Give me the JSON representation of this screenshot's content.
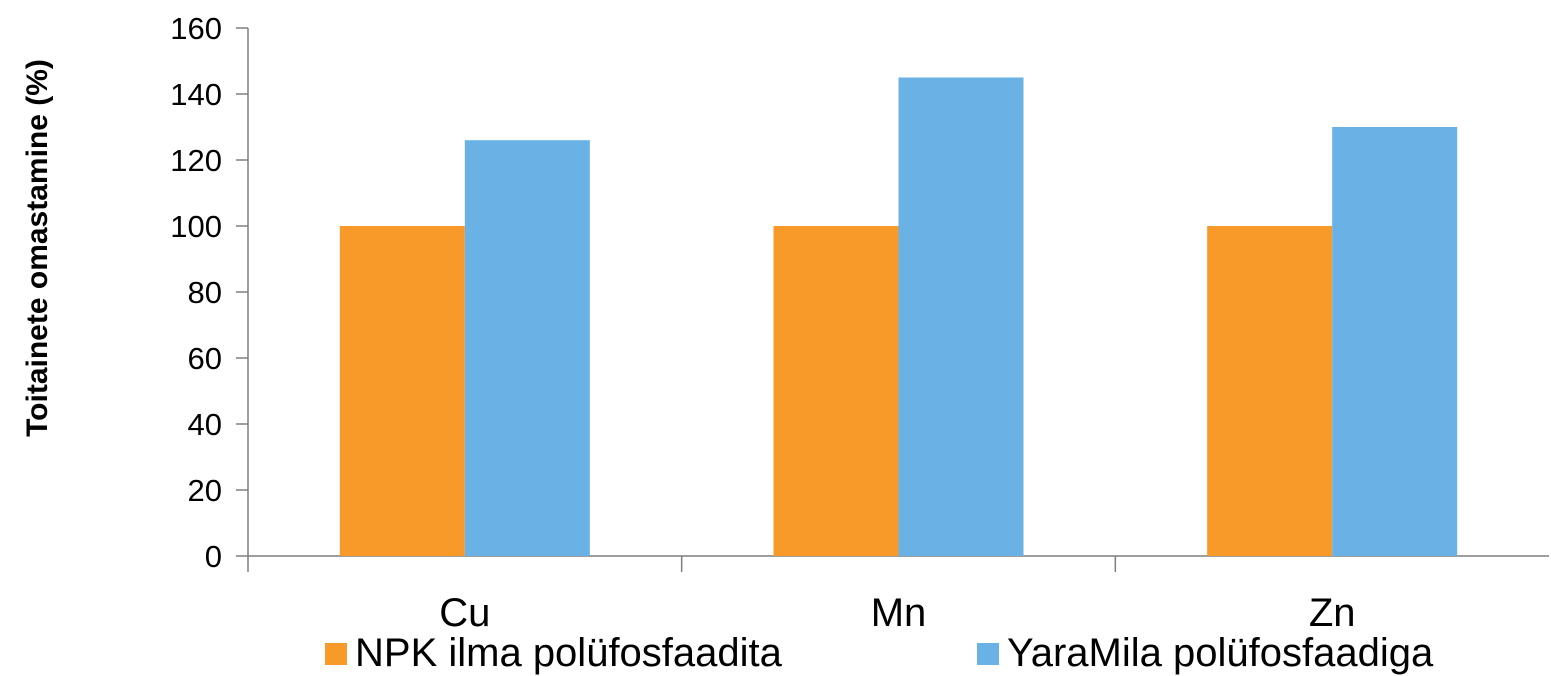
{
  "chart_data": {
    "type": "bar",
    "categories": [
      "Cu",
      "Mn",
      "Zn"
    ],
    "series": [
      {
        "name": "NPK ilma polüfosfaadita",
        "values": [
          100,
          100,
          100
        ],
        "color": "#F79A2A"
      },
      {
        "name": "YaraMila polüfosfaadiga",
        "values": [
          126,
          145,
          130
        ],
        "color": "#6AB1E6"
      }
    ],
    "ylabel": "Toitainete omastamine (%)",
    "xlabel": "",
    "ylim": [
      0,
      160
    ],
    "yticks": [
      0,
      20,
      40,
      60,
      80,
      100,
      120,
      140,
      160
    ],
    "grid": false,
    "legend_placement": "bottom"
  }
}
